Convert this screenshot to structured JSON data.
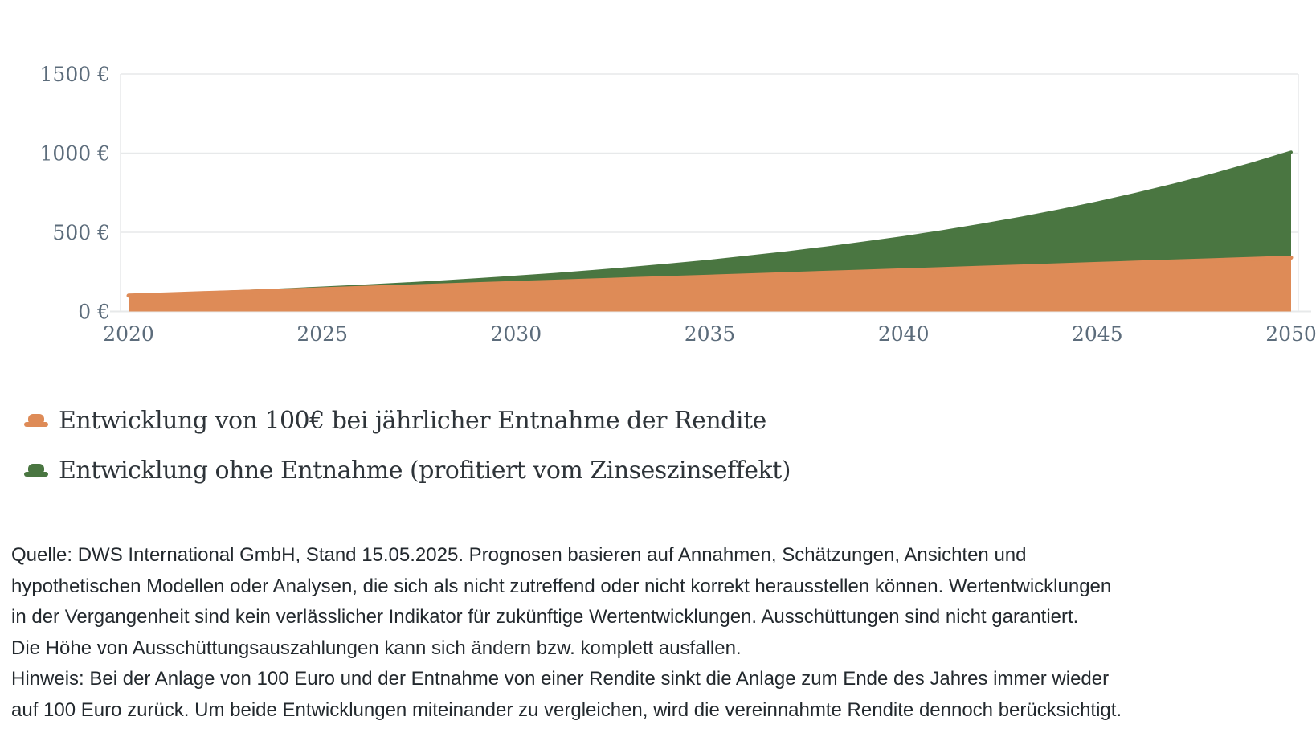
{
  "page": {
    "background": "#ffffff"
  },
  "chart_data": {
    "type": "area",
    "title": "",
    "xlabel": "",
    "ylabel": "",
    "years": [
      2020,
      2021,
      2022,
      2023,
      2024,
      2025,
      2026,
      2027,
      2028,
      2029,
      2030,
      2031,
      2032,
      2033,
      2034,
      2035,
      2036,
      2037,
      2038,
      2039,
      2040,
      2041,
      2042,
      2043,
      2044,
      2045,
      2046,
      2047,
      2048,
      2049,
      2050
    ],
    "series": [
      {
        "name": "Entwicklung von 100€ bei jährlicher Entnahme der Rendite",
        "color": "#DE8B57",
        "values": [
          100,
          108,
          116,
          124,
          132,
          140,
          148,
          156,
          164,
          172,
          180,
          188,
          196,
          204,
          212,
          220,
          228,
          236,
          244,
          252,
          260,
          268,
          276,
          284,
          292,
          300,
          308,
          316,
          324,
          332,
          340
        ]
      },
      {
        "name": "Entwicklung ohne Entnahme (profitiert vom Zinseszinseffekt)",
        "color": "#4A7641",
        "values": [
          100,
          108,
          117,
          126,
          136,
          147,
          159,
          171,
          185,
          200,
          216,
          233,
          252,
          272,
          294,
          317,
          343,
          370,
          400,
          432,
          466,
          503,
          544,
          587,
          634,
          685,
          740,
          799,
          863,
          932,
          1006
        ]
      }
    ],
    "xticks": [
      2020,
      2025,
      2030,
      2035,
      2040,
      2045,
      2050
    ],
    "ytick_values": [
      0,
      500,
      1000,
      1500
    ],
    "ytick_labels": [
      "0 €",
      "500 €",
      "1000 €",
      "1500 €"
    ],
    "ylim": [
      0,
      1500
    ],
    "grid_on": true,
    "grid_color": "#E7E9EA",
    "axis_text_color": "#5C6C7B",
    "legend_position": "bottom-left"
  },
  "legend": {
    "items": [
      {
        "label": "Entwicklung von 100€ bei jährlicher Entnahme der Rendite",
        "color": "#DE8B57"
      },
      {
        "label": "Entwicklung ohne Entnahme (profitiert vom Zinseszinseffekt)",
        "color": "#4A7641"
      }
    ]
  },
  "footnote": {
    "lines": [
      "Quelle: DWS International GmbH, Stand 15.05.2025. Prognosen basieren auf Annahmen, Schätzungen, Ansichten und",
      "hypothetischen Modellen oder Analysen, die sich als nicht zutreffend oder nicht korrekt herausstellen können. Wertentwicklungen",
      "in der Vergangenheit sind kein verlässlicher Indikator für zukünftige Wertentwicklungen. Ausschüttungen sind nicht garantiert.",
      "Die Höhe von Ausschüttungsauszahlungen kann sich ändern bzw. komplett ausfallen.",
      "Hinweis: Bei der Anlage von 100 Euro und der Entnahme von einer Rendite sinkt die Anlage zum Ende des Jahres immer wieder",
      "auf 100 Euro zurück. Um beide Entwicklungen miteinander zu vergleichen, wird die vereinnahmte Rendite dennoch berücksichtigt."
    ]
  }
}
